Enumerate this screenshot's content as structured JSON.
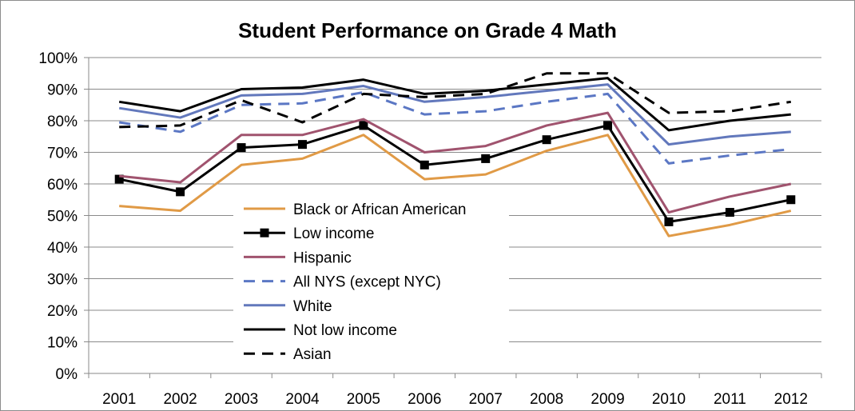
{
  "chart_data": {
    "type": "line",
    "title": "Student Performance on Grade 4 Math",
    "xlabel": "",
    "ylabel": "",
    "categories": [
      "2001",
      "2002",
      "2003",
      "2004",
      "2005",
      "2006",
      "2007",
      "2008",
      "2009",
      "2010",
      "2011",
      "2012"
    ],
    "ylim": [
      0,
      100
    ],
    "yticks": [
      "0%",
      "10%",
      "20%",
      "30%",
      "40%",
      "50%",
      "60%",
      "70%",
      "80%",
      "90%",
      "100%"
    ],
    "grid": true,
    "legend_placement": "center-left",
    "series": [
      {
        "name": "Black or African American",
        "color": "#e09a46",
        "dash": "solid",
        "marker": "none",
        "values": [
          53,
          51.5,
          66,
          68,
          75.5,
          61.5,
          63,
          70.5,
          75.5,
          43.5,
          47,
          51.5
        ]
      },
      {
        "name": "Low income",
        "color": "#000000",
        "dash": "solid",
        "marker": "square",
        "values": [
          61.5,
          57.5,
          71.5,
          72.5,
          78.5,
          66,
          68,
          74,
          78.5,
          48,
          51,
          55
        ]
      },
      {
        "name": "Hispanic",
        "color": "#a0536e",
        "dash": "solid",
        "marker": "none",
        "values": [
          62.5,
          60.5,
          75.5,
          75.5,
          80.5,
          70,
          72,
          78.5,
          82.5,
          51,
          56,
          60
        ]
      },
      {
        "name": "All NYS (except NYC)",
        "color": "#5b77c4",
        "dash": "dashed",
        "marker": "none",
        "values": [
          79.5,
          76.5,
          85,
          85.5,
          89,
          82,
          83,
          86,
          88.5,
          66.5,
          69,
          71
        ]
      },
      {
        "name": "White",
        "color": "#6278bc",
        "dash": "solid",
        "marker": "none",
        "values": [
          84,
          81,
          88,
          88.5,
          91,
          86,
          87.5,
          89.5,
          91.5,
          72.5,
          75,
          76.5
        ]
      },
      {
        "name": "Not low income",
        "color": "#000000",
        "dash": "solid",
        "marker": "none",
        "values": [
          86,
          83,
          90,
          90.5,
          93,
          88.5,
          89.5,
          91.5,
          93.5,
          77,
          80,
          82
        ]
      },
      {
        "name": "Asian",
        "color": "#000000",
        "dash": "dashed",
        "marker": "none",
        "values": [
          78,
          78.5,
          86.5,
          79.5,
          88.5,
          87.5,
          88.5,
          95,
          95,
          82.5,
          83,
          86
        ]
      }
    ]
  }
}
